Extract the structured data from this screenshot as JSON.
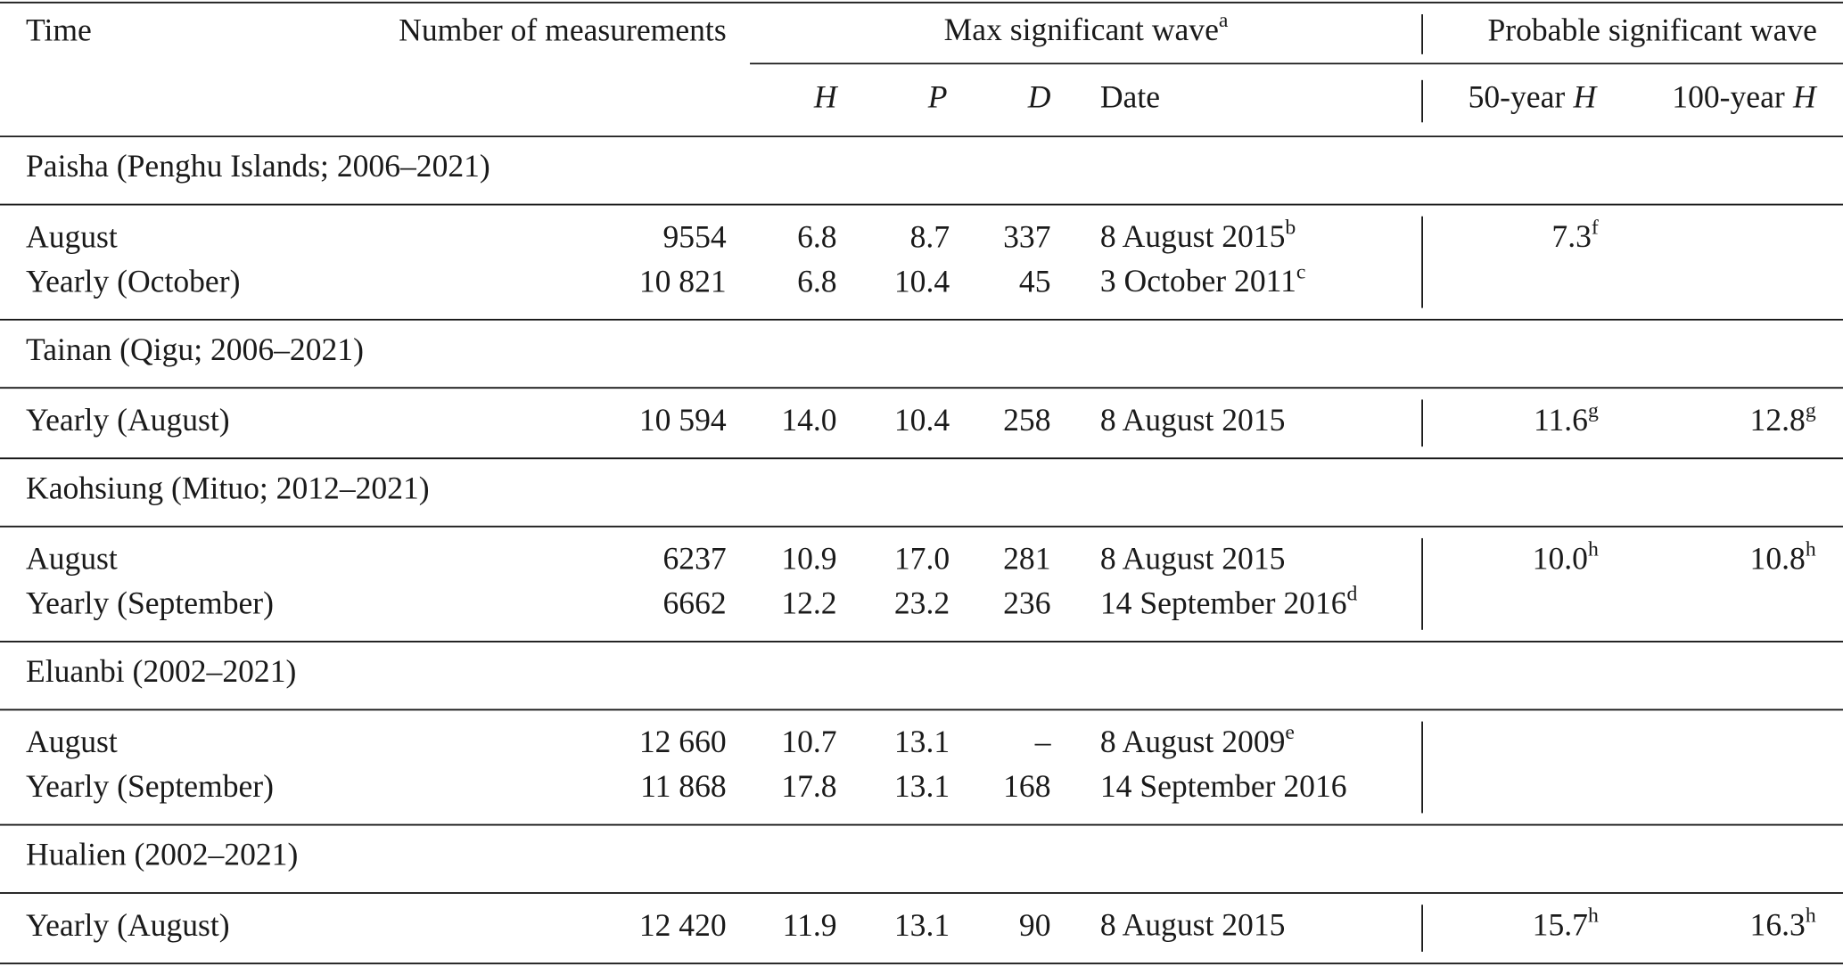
{
  "header": {
    "time": "Time",
    "count": "Number of measurements",
    "max": {
      "text": "Max significant wave",
      "note": "a"
    },
    "probable": "Probable significant wave",
    "H": "H",
    "P": "P",
    "D": "D",
    "date": "Date",
    "h50": {
      "text": "50-year",
      "var": "H"
    },
    "h100": {
      "text": "100-year",
      "var": "H"
    }
  },
  "groups": [
    {
      "label": "Paisha (Penghu Islands; 2006–2021)",
      "rows": [
        {
          "time": "August",
          "count": "9554",
          "H": "6.8",
          "P": "8.7",
          "D": "337",
          "date": {
            "text": "8 August 2015",
            "note": "b"
          },
          "h50": {
            "text": "7.3",
            "note": "f"
          }
        },
        {
          "time": "Yearly (October)",
          "count": "10 821",
          "H": "6.8",
          "P": "10.4",
          "D": "45",
          "date": {
            "text": "3 October 2011",
            "note": "c"
          }
        }
      ]
    },
    {
      "label": "Tainan (Qigu; 2006–2021)",
      "rows": [
        {
          "time": "Yearly (August)",
          "count": "10 594",
          "H": "14.0",
          "P": "10.4",
          "D": "258",
          "date": {
            "text": "8 August 2015"
          },
          "h50": {
            "text": "11.6",
            "note": "g"
          },
          "h100": {
            "text": "12.8",
            "note": "g"
          }
        }
      ]
    },
    {
      "label": "Kaohsiung (Mituo; 2012–2021)",
      "rows": [
        {
          "time": "August",
          "count": "6237",
          "H": "10.9",
          "P": "17.0",
          "D": "281",
          "date": {
            "text": "8 August 2015"
          },
          "h50": {
            "text": "10.0",
            "note": "h"
          },
          "h100": {
            "text": "10.8",
            "note": "h"
          }
        },
        {
          "time": "Yearly (September)",
          "count": "6662",
          "H": "12.2",
          "P": "23.2",
          "D": "236",
          "date": {
            "text": "14 September 2016",
            "note": "d"
          }
        }
      ]
    },
    {
      "label": "Eluanbi (2002–2021)",
      "rows": [
        {
          "time": "August",
          "count": "12 660",
          "H": "10.7",
          "P": "13.1",
          "D": "–",
          "date": {
            "text": "8 August 2009",
            "note": "e"
          }
        },
        {
          "time": "Yearly (September)",
          "count": "11 868",
          "H": "17.8",
          "P": "13.1",
          "D": "168",
          "date": {
            "text": "14 September 2016"
          }
        }
      ]
    },
    {
      "label": "Hualien (2002–2021)",
      "rows": [
        {
          "time": "Yearly (August)",
          "count": "12 420",
          "H": "11.9",
          "P": "13.1",
          "D": "90",
          "date": {
            "text": "8 August 2015"
          },
          "h50": {
            "text": "15.7",
            "note": "h"
          },
          "h100": {
            "text": "16.3",
            "note": "h"
          }
        }
      ]
    }
  ]
}
